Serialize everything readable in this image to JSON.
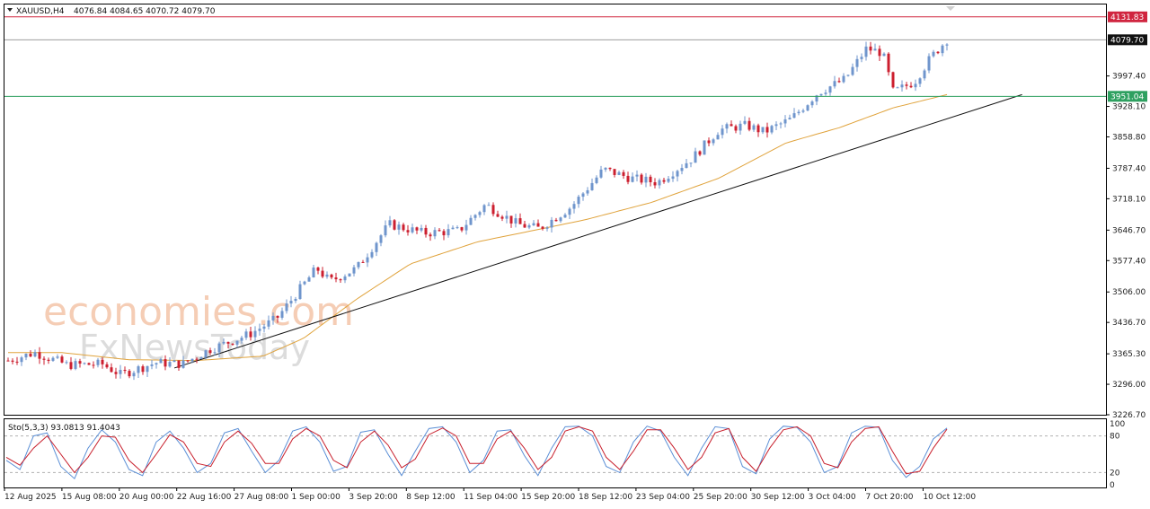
{
  "header": {
    "symbol": "XAUUSD,H4",
    "ohlc": "4076.84 4084.65 4070.72 4079.70"
  },
  "stoch": {
    "label": "Sto(5,3,3) 93.0813 91.4043",
    "levels": [
      100,
      80,
      20,
      0
    ]
  },
  "watermark": {
    "brand": "economies.com",
    "sub": "FxNewsToday"
  },
  "colors": {
    "bull": "#6f95cc",
    "bear": "#cc1f2f",
    "resistance": "#d0253f",
    "support": "#2ea060",
    "price_line": "#9e9e9e",
    "ma": "#e0a33c",
    "trend": "#111111",
    "stoch_k": "#5b8fd6",
    "stoch_d": "#c8202d"
  },
  "chart_data": {
    "type": "candlestick",
    "title": "XAUUSD,H4",
    "ylim": [
      3226.7,
      4160.0
    ],
    "y_ticks": [
      3226.7,
      3296.0,
      3365.3,
      3436.7,
      3506.0,
      3577.4,
      3646.7,
      3718.1,
      3787.4,
      3858.8,
      3928.1,
      3997.4
    ],
    "x_labels": [
      "12 Aug 2025",
      "15 Aug 08:00",
      "20 Aug 00:00",
      "22 Aug 16:00",
      "27 Aug 08:00",
      "1 Sep 00:00",
      "3 Sep 20:00",
      "8 Sep 12:00",
      "11 Sep 04:00",
      "15 Sep 20:00",
      "18 Sep 12:00",
      "23 Sep 04:00",
      "25 Sep 20:00",
      "30 Sep 12:00",
      "3 Oct 04:00",
      "7 Oct 20:00",
      "10 Oct 12:00"
    ],
    "horizontal_lines": [
      {
        "label": "4131.83",
        "value": 4131.83
      },
      {
        "label": "4079.70",
        "value": 4079.7
      },
      {
        "label": "3951.04",
        "value": 3951.04
      }
    ],
    "candle_count": 210,
    "price_path": [
      {
        "x": 0,
        "y": 3350
      },
      {
        "x": 10,
        "y": 3368
      },
      {
        "x": 22,
        "y": 3340
      },
      {
        "x": 35,
        "y": 3342
      },
      {
        "x": 42,
        "y": 3318
      },
      {
        "x": 55,
        "y": 3345
      },
      {
        "x": 65,
        "y": 3342
      },
      {
        "x": 75,
        "y": 3375
      },
      {
        "x": 90,
        "y": 3410
      },
      {
        "x": 100,
        "y": 3445
      },
      {
        "x": 115,
        "y": 3560
      },
      {
        "x": 120,
        "y": 3530
      },
      {
        "x": 130,
        "y": 3560
      },
      {
        "x": 142,
        "y": 3660
      },
      {
        "x": 155,
        "y": 3640
      },
      {
        "x": 168,
        "y": 3645
      },
      {
        "x": 178,
        "y": 3705
      },
      {
        "x": 190,
        "y": 3660
      },
      {
        "x": 198,
        "y": 3650
      },
      {
        "x": 210,
        "y": 3700
      },
      {
        "x": 222,
        "y": 3785
      },
      {
        "x": 232,
        "y": 3765
      },
      {
        "x": 242,
        "y": 3755
      },
      {
        "x": 255,
        "y": 3810
      },
      {
        "x": 265,
        "y": 3875
      },
      {
        "x": 275,
        "y": 3885
      },
      {
        "x": 282,
        "y": 3870
      },
      {
        "x": 292,
        "y": 3900
      },
      {
        "x": 302,
        "y": 3960
      },
      {
        "x": 312,
        "y": 3990
      },
      {
        "x": 320,
        "y": 4060
      },
      {
        "x": 326,
        "y": 4050
      },
      {
        "x": 330,
        "y": 3960
      },
      {
        "x": 338,
        "y": 3985
      },
      {
        "x": 344,
        "y": 4040
      },
      {
        "x": 350,
        "y": 4080
      }
    ],
    "ma_path": [
      {
        "x": 0,
        "y": 3368
      },
      {
        "x": 20,
        "y": 3368
      },
      {
        "x": 45,
        "y": 3352
      },
      {
        "x": 70,
        "y": 3350
      },
      {
        "x": 95,
        "y": 3360
      },
      {
        "x": 110,
        "y": 3400
      },
      {
        "x": 130,
        "y": 3490
      },
      {
        "x": 150,
        "y": 3570
      },
      {
        "x": 175,
        "y": 3620
      },
      {
        "x": 195,
        "y": 3645
      },
      {
        "x": 215,
        "y": 3670
      },
      {
        "x": 240,
        "y": 3710
      },
      {
        "x": 265,
        "y": 3765
      },
      {
        "x": 290,
        "y": 3845
      },
      {
        "x": 310,
        "y": 3880
      },
      {
        "x": 330,
        "y": 3925
      },
      {
        "x": 350,
        "y": 3955
      }
    ],
    "trendline": [
      {
        "x": 62,
        "y": 3333
      },
      {
        "x": 378,
        "y": 3955
      }
    ],
    "stoch_k": [
      40,
      25,
      80,
      85,
      30,
      10,
      60,
      90,
      70,
      25,
      15,
      70,
      88,
      60,
      20,
      35,
      85,
      92,
      55,
      20,
      40,
      88,
      95,
      70,
      22,
      30,
      86,
      90,
      50,
      15,
      55,
      92,
      95,
      70,
      20,
      40,
      88,
      90,
      48,
      15,
      60,
      95,
      96,
      80,
      30,
      20,
      70,
      96,
      88,
      45,
      15,
      60,
      95,
      92,
      30,
      18,
      75,
      96,
      94,
      70,
      20,
      30,
      85,
      96,
      94,
      40,
      12,
      30,
      75,
      93
    ],
    "stoch_d": [
      45,
      32,
      60,
      80,
      50,
      20,
      45,
      80,
      78,
      40,
      20,
      50,
      82,
      70,
      35,
      30,
      70,
      88,
      68,
      35,
      35,
      75,
      92,
      80,
      40,
      28,
      70,
      88,
      65,
      28,
      42,
      82,
      93,
      80,
      35,
      35,
      75,
      88,
      60,
      25,
      45,
      88,
      95,
      88,
      45,
      25,
      55,
      90,
      90,
      60,
      25,
      45,
      85,
      92,
      45,
      22,
      60,
      90,
      95,
      80,
      35,
      28,
      70,
      92,
      95,
      55,
      18,
      22,
      60,
      91
    ]
  }
}
